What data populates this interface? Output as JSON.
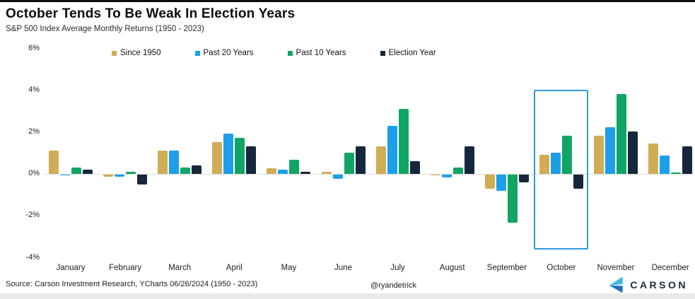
{
  "header": {
    "title": "October Tends To Be Weak In Election Years",
    "subtitle": "S&P 500 Index Average Monthly Returns (1950 - 2023)"
  },
  "footer": {
    "source": "Source: Carson Investment Research, YCharts 06/26/2024 (1950 - 2023)",
    "handle": "@ryandetrick",
    "brand": "CARSON"
  },
  "colors": {
    "since_1950": "#d0ac54",
    "past_20_years": "#1c9fe8",
    "past_10_years": "#10a564",
    "election_year": "#16263c",
    "highlight_border": "#2e9bda",
    "zero_line": "#dcdcdc"
  },
  "chart_data": {
    "type": "bar",
    "title": "October Tends To Be Weak In Election Years",
    "subtitle": "S&P 500 Index Average Monthly Returns (1950 - 2023)",
    "categories": [
      "January",
      "February",
      "March",
      "April",
      "May",
      "June",
      "July",
      "August",
      "September",
      "October",
      "November",
      "December"
    ],
    "series": [
      {
        "name": "Since 1950",
        "color": "#d0ac54",
        "values": [
          1.1,
          -0.1,
          1.1,
          1.5,
          0.25,
          0.1,
          1.3,
          -0.05,
          -0.7,
          0.9,
          1.8,
          1.45
        ]
      },
      {
        "name": "Past 20 Years",
        "color": "#1c9fe8",
        "values": [
          -0.05,
          -0.1,
          1.1,
          1.9,
          0.2,
          -0.2,
          2.3,
          -0.15,
          -0.8,
          1.0,
          2.2,
          0.85
        ]
      },
      {
        "name": "Past 10 Years",
        "color": "#10a564",
        "values": [
          0.3,
          0.1,
          0.3,
          1.7,
          0.65,
          1.0,
          3.1,
          0.3,
          -2.3,
          1.8,
          3.8,
          0.05
        ]
      },
      {
        "name": "Election Year",
        "color": "#16263c",
        "values": [
          0.2,
          -0.5,
          0.4,
          1.3,
          0.1,
          1.3,
          0.6,
          1.3,
          -0.4,
          -0.7,
          2.0,
          1.3
        ]
      }
    ],
    "ylabel": "",
    "xlabel": "",
    "ylim": [
      -4,
      6
    ],
    "yticks": [
      6,
      4,
      2,
      0,
      -2,
      -4
    ],
    "ytick_labels": [
      "6%",
      "4%",
      "2%",
      "0%",
      "-2%",
      "-4%"
    ],
    "grid": "zero-line-only",
    "legend_position": "top",
    "highlight": {
      "category": "October",
      "border_color": "#2e9bda"
    }
  }
}
